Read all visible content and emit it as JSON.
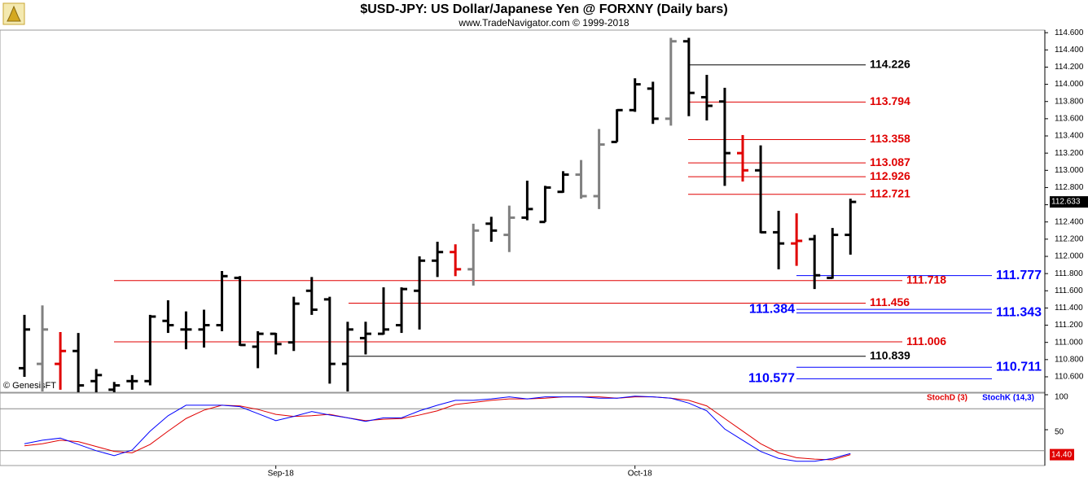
{
  "chart_data": [
    {
      "type": "ohlc",
      "title": "$USD-JPY:  US Dollar/Japanese Yen @ FORXNY  (Daily bars)",
      "subtitle": "www.TradeNavigator.com © 1999-2018",
      "watermark": "© GenesisFT",
      "categories": [
        null,
        null,
        null,
        null,
        null,
        null,
        null,
        null,
        null,
        null,
        null,
        null,
        null,
        null,
        "Sep-18",
        null,
        null,
        null,
        null,
        null,
        null,
        null,
        null,
        null,
        null,
        null,
        null,
        null,
        null,
        null,
        null,
        null,
        null,
        null,
        "Oct-18",
        null,
        null,
        null,
        null,
        null,
        null,
        null,
        null,
        null,
        null,
        null,
        null
      ],
      "open": [
        110.7,
        110.75,
        110.75,
        110.9,
        110.55,
        110.45,
        110.55,
        110.55,
        111.25,
        111.15,
        111.15,
        111.2,
        111.75,
        110.95,
        111.1,
        111.0,
        111.6,
        111.5,
        110.75,
        111.05,
        111.1,
        111.2,
        111.6,
        111.95,
        112.05,
        111.85,
        112.38,
        112.25,
        112.45,
        112.4,
        112.75,
        112.95,
        112.7,
        113.33,
        113.7,
        113.95,
        113.6,
        114.5,
        113.85,
        113.8,
        113.2,
        113.0,
        112.28,
        112.15,
        112.2,
        111.75,
        112.25
      ],
      "high": [
        111.32,
        111.43,
        111.12,
        111.11,
        110.69,
        110.54,
        110.62,
        111.32,
        111.49,
        111.36,
        111.38,
        111.83,
        111.77,
        111.13,
        111.11,
        111.53,
        111.76,
        111.53,
        111.24,
        111.24,
        111.64,
        111.64,
        112.0,
        112.17,
        112.14,
        112.38,
        112.46,
        112.59,
        112.88,
        112.82,
        112.99,
        113.12,
        113.48,
        113.71,
        114.07,
        114.03,
        114.54,
        114.54,
        114.11,
        113.96,
        113.41,
        113.29,
        112.53,
        112.5,
        112.25,
        112.33,
        112.67
      ],
      "low": [
        110.6,
        110.43,
        110.45,
        110.4,
        110.4,
        110.38,
        110.45,
        110.5,
        111.11,
        110.92,
        110.94,
        111.13,
        110.96,
        110.7,
        110.86,
        110.9,
        111.32,
        110.52,
        110.43,
        110.86,
        111.09,
        111.11,
        111.15,
        111.76,
        111.77,
        111.66,
        112.17,
        112.05,
        112.42,
        112.4,
        112.74,
        112.67,
        112.55,
        113.33,
        113.68,
        113.54,
        113.52,
        113.63,
        113.58,
        112.82,
        112.87,
        112.27,
        111.85,
        111.89,
        111.62,
        111.74,
        112.02
      ],
      "close": [
        111.15,
        111.15,
        110.9,
        110.5,
        110.62,
        110.5,
        110.55,
        111.3,
        111.2,
        111.15,
        111.2,
        111.77,
        110.97,
        111.1,
        110.98,
        111.45,
        111.38,
        110.75,
        111.15,
        111.1,
        111.15,
        111.62,
        111.95,
        112.05,
        111.85,
        112.3,
        112.3,
        112.45,
        112.55,
        112.8,
        112.95,
        112.7,
        113.3,
        113.7,
        114.0,
        113.6,
        114.5,
        113.9,
        113.75,
        113.2,
        113.0,
        112.28,
        112.15,
        112.18,
        111.78,
        112.25,
        112.633
      ],
      "colors": [
        "#000",
        "#808080",
        "#e00000",
        "#000",
        "#000",
        "#000",
        "#000",
        "#000",
        "#000",
        "#000",
        "#000",
        "#000",
        "#000",
        "#000",
        "#000",
        "#000",
        "#000",
        "#000",
        "#000",
        "#000",
        "#000",
        "#000",
        "#000",
        "#000",
        "#e00000",
        "#808080",
        "#000",
        "#808080",
        "#000",
        "#000",
        "#000",
        "#808080",
        "#808080",
        "#000",
        "#000",
        "#000",
        "#808080",
        "#000",
        "#000",
        "#000",
        "#e00000",
        "#000",
        "#000",
        "#e00000",
        "#000",
        "#000",
        "#000"
      ],
      "ylim": [
        110.42,
        114.63
      ],
      "yticks": [
        {
          "value": 110.6,
          "label": "110.600"
        },
        {
          "value": 110.8,
          "label": "110.800"
        },
        {
          "value": 111.0,
          "label": "111.000"
        },
        {
          "value": 111.2,
          "label": "111.200"
        },
        {
          "value": 111.4,
          "label": "111.400"
        },
        {
          "value": 111.6,
          "label": "111.600"
        },
        {
          "value": 111.8,
          "label": "111.800"
        },
        {
          "value": 112.0,
          "label": "112.000"
        },
        {
          "value": 112.2,
          "label": "112.200"
        },
        {
          "value": 112.4,
          "label": "112.400"
        },
        {
          "value": 112.6,
          "label": "112.600"
        },
        {
          "value": 112.8,
          "label": "112.800"
        },
        {
          "value": 113.0,
          "label": "113.000"
        },
        {
          "value": 113.2,
          "label": "113.200"
        },
        {
          "value": 113.4,
          "label": "113.400"
        },
        {
          "value": 113.6,
          "label": "113.600"
        },
        {
          "value": 113.8,
          "label": "113.800"
        },
        {
          "value": 114.0,
          "label": "114.000"
        },
        {
          "value": 114.2,
          "label": "114.200"
        },
        {
          "value": 114.4,
          "label": "114.400"
        },
        {
          "value": 114.6,
          "label": "114.600"
        }
      ],
      "last_price": 112.633,
      "levels": [
        {
          "value": 114.226,
          "color": "#000000"
        },
        {
          "value": 113.794,
          "color": "#e00000"
        },
        {
          "value": 113.358,
          "color": "#e00000"
        },
        {
          "value": 113.087,
          "color": "#e00000"
        },
        {
          "value": 112.926,
          "color": "#e00000"
        },
        {
          "value": 112.721,
          "color": "#e00000"
        },
        {
          "value": 111.777,
          "color": "#0000ff"
        },
        {
          "value": 111.718,
          "color": "#e00000"
        },
        {
          "value": 111.456,
          "color": "#e00000"
        },
        {
          "value": 111.384,
          "color": "#0000ff"
        },
        {
          "value": 111.343,
          "color": "#0000ff"
        },
        {
          "value": 111.006,
          "color": "#e00000"
        },
        {
          "value": 110.839,
          "color": "#000000"
        },
        {
          "value": 110.711,
          "color": "#0000ff"
        },
        {
          "value": 110.577,
          "color": "#0000ff"
        }
      ]
    },
    {
      "type": "line",
      "series": [
        {
          "name": "StochD (3)",
          "color": "#e00000",
          "last_label": "14.40",
          "values": [
            27,
            30,
            35,
            33,
            26,
            19,
            17,
            29,
            48,
            66,
            78,
            85,
            84,
            79,
            72,
            69,
            70,
            72,
            67,
            63,
            65,
            66,
            71,
            77,
            86,
            89,
            92,
            94,
            94,
            95,
            97,
            97,
            97,
            95,
            97,
            97,
            95,
            92,
            84,
            66,
            48,
            30,
            17,
            10,
            8,
            7,
            14.4
          ]
        },
        {
          "name": "StochK (14,3)",
          "color": "#0000ff",
          "values": [
            30,
            35,
            38,
            29,
            20,
            13,
            21,
            48,
            70,
            85,
            85,
            85,
            83,
            73,
            63,
            69,
            76,
            71,
            67,
            62,
            67,
            67,
            77,
            85,
            92,
            92,
            94,
            97,
            94,
            97,
            97,
            97,
            95,
            95,
            98,
            97,
            95,
            88,
            77,
            51,
            35,
            19,
            9,
            5,
            5,
            9,
            16
          ]
        }
      ],
      "ylim": [
        0,
        100
      ],
      "yticks": [
        50,
        100
      ],
      "hlines": [
        20,
        80
      ]
    }
  ]
}
